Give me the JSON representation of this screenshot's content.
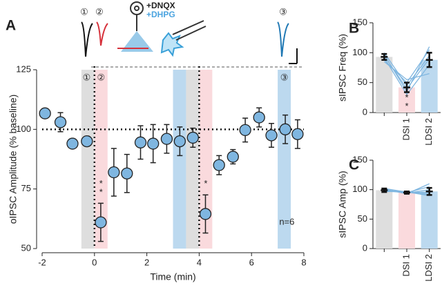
{
  "schematic": {
    "drug1": "+DNQX",
    "drug2": "+DHPG",
    "markers": [
      "①",
      "②",
      "③"
    ]
  },
  "chart_data": [
    {
      "type": "scatter",
      "panel": "A",
      "ylabel": "oIPSC Amplitude (% baseline)",
      "xlabel": "Time (min)",
      "xlim": [
        -2,
        8
      ],
      "xticks": [
        -2,
        0,
        2,
        4,
        6,
        8
      ],
      "ylim": [
        50,
        125
      ],
      "yticks": [
        50,
        75,
        100,
        125
      ],
      "x": [
        -1.89,
        -1.3,
        -0.84,
        -0.29,
        0.24,
        0.74,
        1.24,
        1.76,
        2.24,
        2.76,
        3.26,
        3.76,
        4.24,
        4.76,
        5.29,
        5.76,
        6.29,
        6.76,
        7.29,
        7.76
      ],
      "values": [
        106.7,
        103,
        94,
        95,
        61,
        82,
        81.5,
        94.5,
        94,
        96,
        95,
        96.5,
        64.5,
        85,
        88.5,
        99.7,
        105,
        97.5,
        100,
        98
      ],
      "errors": [
        2,
        4,
        1.5,
        2,
        8,
        10,
        8,
        7,
        8,
        6,
        6,
        4,
        8,
        4,
        3,
        5,
        4,
        5,
        6,
        6
      ],
      "color": "#7fb6e0",
      "bands": [
        {
          "from": -0.5,
          "to": 0,
          "color": "#dedede"
        },
        {
          "from": 0,
          "to": 0.5,
          "color": "#fadadd"
        },
        {
          "from": 3,
          "to": 3.5,
          "color": "#bcd9ef"
        },
        {
          "from": 3.5,
          "to": 4,
          "color": "#dedede"
        },
        {
          "from": 4,
          "to": 4.5,
          "color": "#fadadd"
        },
        {
          "from": 7,
          "to": 7.5,
          "color": "#bcd9ef"
        }
      ],
      "hline": 100,
      "vlines": [
        0,
        4
      ],
      "annotations": [
        {
          "text": "*",
          "x": 0.25,
          "y": 77
        },
        {
          "text": "*",
          "x": 0.25,
          "y": 73.5
        },
        {
          "text": "*",
          "x": 4.25,
          "y": 77
        },
        {
          "text": "n=6",
          "x": 7.35,
          "y": 61
        },
        {
          "text": "①",
          "x": -0.3,
          "y": 121.5
        },
        {
          "text": "②",
          "x": 0.25,
          "y": 121.5
        },
        {
          "text": "③",
          "x": 7.25,
          "y": 121.5
        }
      ]
    },
    {
      "type": "bar",
      "panel": "B",
      "ylabel": "sIPSC Freq (%)",
      "categories": [
        null,
        "DSI 1",
        "LDSI 2"
      ],
      "values": [
        93,
        42,
        88
      ],
      "errors": [
        5,
        8,
        12
      ],
      "colors": [
        "#dedede",
        "#fadadd",
        "#bcd9ef"
      ],
      "ylim": [
        0,
        150
      ],
      "yticks": [
        0,
        50,
        100,
        150
      ],
      "individuals": [
        [
          100,
          45,
          95
        ],
        [
          97,
          35,
          110
        ],
        [
          88,
          50,
          105
        ],
        [
          92,
          30,
          80
        ],
        [
          85,
          55,
          65
        ],
        [
          95,
          40,
          90
        ]
      ],
      "individual_color": "#7fb6e0",
      "annotations": [
        {
          "text": "*",
          "x": 1,
          "y": 24
        },
        {
          "text": "*",
          "x": 1,
          "y": 10
        }
      ]
    },
    {
      "type": "bar",
      "panel": "C",
      "ylabel": "sIPSC Amp (%)",
      "categories": [
        null,
        "DSI 1",
        "LDSI 2"
      ],
      "values": [
        99,
        95,
        97
      ],
      "errors": [
        3,
        2,
        6
      ],
      "colors": [
        "#dedede",
        "#fadadd",
        "#bcd9ef"
      ],
      "ylim": [
        0,
        150
      ],
      "yticks": [
        0,
        50,
        100,
        150
      ],
      "individuals": [
        [
          100,
          95,
          105
        ],
        [
          98,
          97,
          92
        ],
        [
          101,
          93,
          110
        ],
        [
          97,
          96,
          90
        ],
        [
          99,
          94,
          100
        ],
        [
          102,
          96,
          95
        ]
      ],
      "individual_color": "#7fb6e0",
      "annotations": []
    }
  ]
}
